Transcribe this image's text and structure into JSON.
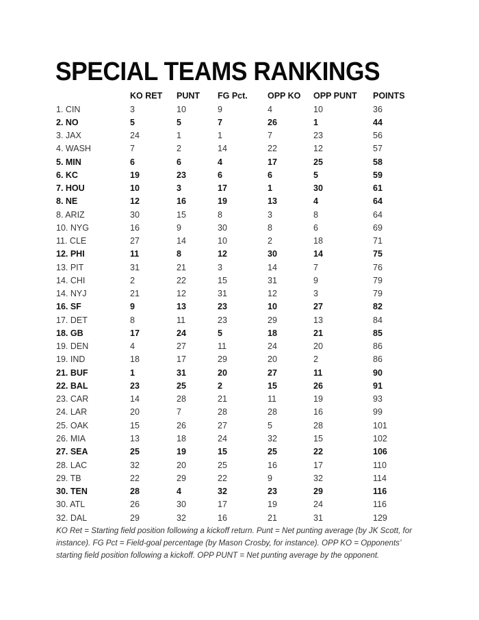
{
  "title": "SPECIAL TEAMS RANKINGS",
  "columns": [
    "",
    "KO RET",
    "PUNT",
    "FG Pct.",
    "OPP KO",
    "OPP PUNT",
    "POINTS"
  ],
  "rows": [
    {
      "bold": false,
      "cells": [
        "1. CIN",
        "3",
        "10",
        "9",
        "4",
        "10",
        "36"
      ]
    },
    {
      "bold": true,
      "cells": [
        "2. NO",
        "5",
        "5",
        "7",
        "26",
        "1",
        "44"
      ]
    },
    {
      "bold": false,
      "cells": [
        "3. JAX",
        "24",
        "1",
        "1",
        "7",
        "23",
        "56"
      ]
    },
    {
      "bold": false,
      "cells": [
        "4. WASH",
        "7",
        "2",
        "14",
        "22",
        "12",
        "57"
      ]
    },
    {
      "bold": true,
      "cells": [
        "5. MIN",
        "6",
        "6",
        "4",
        "17",
        "25",
        "58"
      ]
    },
    {
      "bold": true,
      "cells": [
        "6. KC",
        "19",
        "23",
        "6",
        "6",
        "5",
        "59"
      ]
    },
    {
      "bold": true,
      "cells": [
        "7. HOU",
        "10",
        "3",
        "17",
        "1",
        "30",
        "61"
      ]
    },
    {
      "bold": true,
      "cells": [
        "8. NE",
        "12",
        "16",
        "19",
        "13",
        "4",
        "64"
      ]
    },
    {
      "bold": false,
      "cells": [
        "8. ARIZ",
        "30",
        "15",
        "8",
        "3",
        "8",
        "64"
      ]
    },
    {
      "bold": false,
      "cells": [
        "10. NYG",
        "16",
        "9",
        "30",
        "8",
        "6",
        "69"
      ]
    },
    {
      "bold": false,
      "cells": [
        "11. CLE",
        "27",
        "14",
        "10",
        "2",
        "18",
        "71"
      ]
    },
    {
      "bold": true,
      "cells": [
        "12. PHI",
        "11",
        "8",
        "12",
        "30",
        "14",
        "75"
      ]
    },
    {
      "bold": false,
      "cells": [
        "13. PIT",
        "31",
        "21",
        "3",
        "14",
        "7",
        "76"
      ]
    },
    {
      "bold": false,
      "cells": [
        "14. CHI",
        "2",
        "22",
        "15",
        "31",
        "9",
        "79"
      ]
    },
    {
      "bold": false,
      "cells": [
        "14. NYJ",
        "21",
        "12",
        "31",
        "12",
        "3",
        "79"
      ]
    },
    {
      "bold": true,
      "cells": [
        "16. SF",
        "9",
        "13",
        "23",
        "10",
        "27",
        "82"
      ]
    },
    {
      "bold": false,
      "cells": [
        "17. DET",
        "8",
        "11",
        "23",
        "29",
        "13",
        "84"
      ]
    },
    {
      "bold": true,
      "cells": [
        "18. GB",
        "17",
        "24",
        "5",
        "18",
        "21",
        "85"
      ]
    },
    {
      "bold": false,
      "cells": [
        "19. DEN",
        "4",
        "27",
        "11",
        "24",
        "20",
        "86"
      ]
    },
    {
      "bold": false,
      "cells": [
        "19. IND",
        "18",
        "17",
        "29",
        "20",
        "2",
        "86"
      ]
    },
    {
      "bold": true,
      "cells": [
        "21. BUF",
        "1",
        "31",
        "20",
        "27",
        "11",
        "90"
      ]
    },
    {
      "bold": true,
      "cells": [
        "22. BAL",
        "23",
        "25",
        "2",
        "15",
        "26",
        "91"
      ]
    },
    {
      "bold": false,
      "cells": [
        "23. CAR",
        "14",
        "28",
        "21",
        "11",
        "19",
        "93"
      ]
    },
    {
      "bold": false,
      "cells": [
        "24. LAR",
        "20",
        "7",
        "28",
        "28",
        "16",
        "99"
      ]
    },
    {
      "bold": false,
      "cells": [
        "25. OAK",
        "15",
        "26",
        "27",
        "5",
        "28",
        "101"
      ]
    },
    {
      "bold": false,
      "cells": [
        "26. MIA",
        "13",
        "18",
        "24",
        "32",
        "15",
        "102"
      ]
    },
    {
      "bold": true,
      "cells": [
        "27. SEA",
        "25",
        "19",
        "15",
        "25",
        "22",
        "106"
      ]
    },
    {
      "bold": false,
      "cells": [
        "28. LAC",
        "32",
        "20",
        "25",
        "16",
        "17",
        "110"
      ]
    },
    {
      "bold": false,
      "cells": [
        "29. TB",
        "22",
        "29",
        "22",
        "9",
        "32",
        "114"
      ]
    },
    {
      "bold": true,
      "cells": [
        "30. TEN",
        "28",
        "4",
        "32",
        "23",
        "29",
        "116"
      ]
    },
    {
      "bold": false,
      "cells": [
        "30. ATL",
        "26",
        "30",
        "17",
        "19",
        "24",
        "116"
      ]
    },
    {
      "bold": false,
      "cells": [
        "32. DAL",
        "29",
        "32",
        "16",
        "21",
        "31",
        "129"
      ]
    }
  ],
  "footnote": "KO Ret = Starting field position following a kickoff return. Punt = Net punting average (by JK Scott, for instance). FG Pct = Field-goal percentage (by Mason Crosby, for instance). OPP KO = Opponents’ starting field position following a kickoff. OPP PUNT = Net punting average by the opponent."
}
